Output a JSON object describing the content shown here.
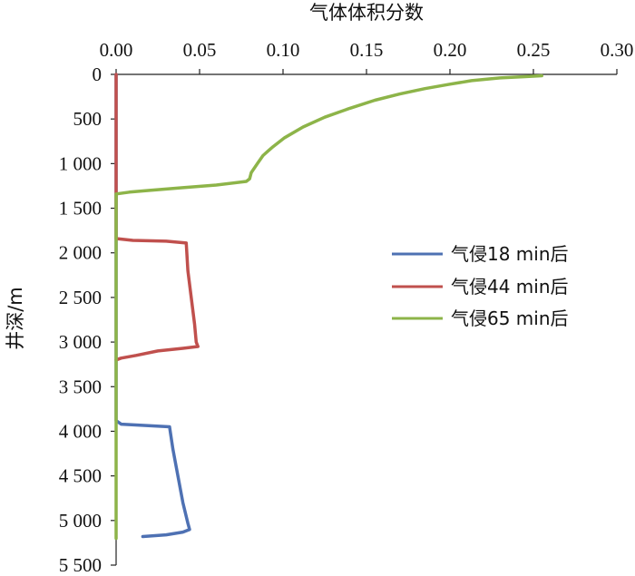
{
  "chart_data": {
    "type": "line",
    "xlabel": "气体体积分数",
    "ylabel": "井深/m",
    "xlim": [
      0,
      0.3
    ],
    "ylim": [
      0,
      5500
    ],
    "x_axis_position": "top",
    "y_axis_inverted": true,
    "x_ticks": [
      0,
      0.05,
      0.1,
      0.15,
      0.2,
      0.25,
      0.3
    ],
    "x_tick_labels": [
      "0.00",
      "0.05",
      "0.10",
      "0.15",
      "0.20",
      "0.25",
      "0.30"
    ],
    "y_ticks": [
      0,
      500,
      1000,
      1500,
      2000,
      2500,
      3000,
      3500,
      4000,
      4500,
      5000,
      5500
    ],
    "y_tick_labels": [
      "0",
      "500",
      "1 000",
      "1 500",
      "2 000",
      "2 500",
      "3 000",
      "3 500",
      "4 000",
      "4 500",
      "5 000",
      "5 500"
    ],
    "grid": false,
    "legend_position": "right",
    "series": [
      {
        "name": "气侵18 min后",
        "color": "#4e71b3",
        "points": [
          [
            0,
            0
          ],
          [
            0,
            3880
          ],
          [
            0.003,
            3920
          ],
          [
            0.032,
            3950
          ],
          [
            0.034,
            4200
          ],
          [
            0.037,
            4500
          ],
          [
            0.04,
            4800
          ],
          [
            0.043,
            5030
          ],
          [
            0.044,
            5100
          ],
          [
            0.04,
            5130
          ],
          [
            0.03,
            5160
          ],
          [
            0.016,
            5180
          ]
        ]
      },
      {
        "name": "气侵44 min后",
        "color": "#c0504d",
        "points": [
          [
            0,
            0
          ],
          [
            0,
            1840
          ],
          [
            0.01,
            1860
          ],
          [
            0.03,
            1870
          ],
          [
            0.042,
            1890
          ],
          [
            0.043,
            2200
          ],
          [
            0.045,
            2500
          ],
          [
            0.047,
            2800
          ],
          [
            0.048,
            3000
          ],
          [
            0.049,
            3050
          ],
          [
            0.04,
            3070
          ],
          [
            0.025,
            3100
          ],
          [
            0.012,
            3150
          ],
          [
            0.003,
            3180
          ],
          [
            0,
            3200
          ]
        ]
      },
      {
        "name": "气侵65 min后",
        "color": "#8db449",
        "points": [
          [
            0.255,
            15
          ],
          [
            0.245,
            25
          ],
          [
            0.23,
            40
          ],
          [
            0.213,
            70
          ],
          [
            0.2,
            110
          ],
          [
            0.185,
            160
          ],
          [
            0.17,
            220
          ],
          [
            0.155,
            290
          ],
          [
            0.14,
            380
          ],
          [
            0.125,
            480
          ],
          [
            0.112,
            590
          ],
          [
            0.101,
            710
          ],
          [
            0.094,
            810
          ],
          [
            0.091,
            860
          ],
          [
            0.088,
            910
          ],
          [
            0.085,
            990
          ],
          [
            0.081,
            1100
          ],
          [
            0.08,
            1170
          ],
          [
            0.078,
            1200
          ],
          [
            0.06,
            1240
          ],
          [
            0.04,
            1270
          ],
          [
            0.02,
            1300
          ],
          [
            0.008,
            1320
          ],
          [
            0,
            1340
          ],
          [
            0,
            5200
          ]
        ]
      }
    ]
  }
}
